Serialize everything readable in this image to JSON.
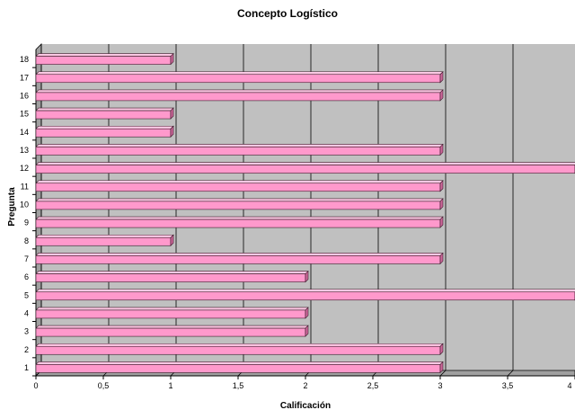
{
  "chart_data": {
    "type": "bar",
    "orientation": "horizontal",
    "title": "Concepto Logístico",
    "xlabel": "Calificación",
    "ylabel": "Pregunta",
    "categories": [
      "1",
      "2",
      "3",
      "4",
      "5",
      "6",
      "7",
      "8",
      "9",
      "10",
      "11",
      "12",
      "13",
      "14",
      "15",
      "16",
      "17",
      "18"
    ],
    "values": [
      3,
      3,
      2,
      2,
      4,
      2,
      3,
      1,
      3,
      3,
      3,
      4,
      3,
      1,
      1,
      3,
      3,
      1
    ],
    "xlim": [
      0,
      4
    ],
    "xticks": [
      "0",
      "0,5",
      "1",
      "1,5",
      "2",
      "2,5",
      "3",
      "3,5",
      "4"
    ],
    "grid": true,
    "legend": "none",
    "colors": {
      "bar_front": "#ff99cc",
      "bar_top": "#ffc8e4",
      "bar_side": "#cc6699",
      "bar_edge": "#3a1a2a",
      "plot_back": "#c0c0c0",
      "plot_floor": "#a0a0a0",
      "gridline": "#000000"
    }
  }
}
